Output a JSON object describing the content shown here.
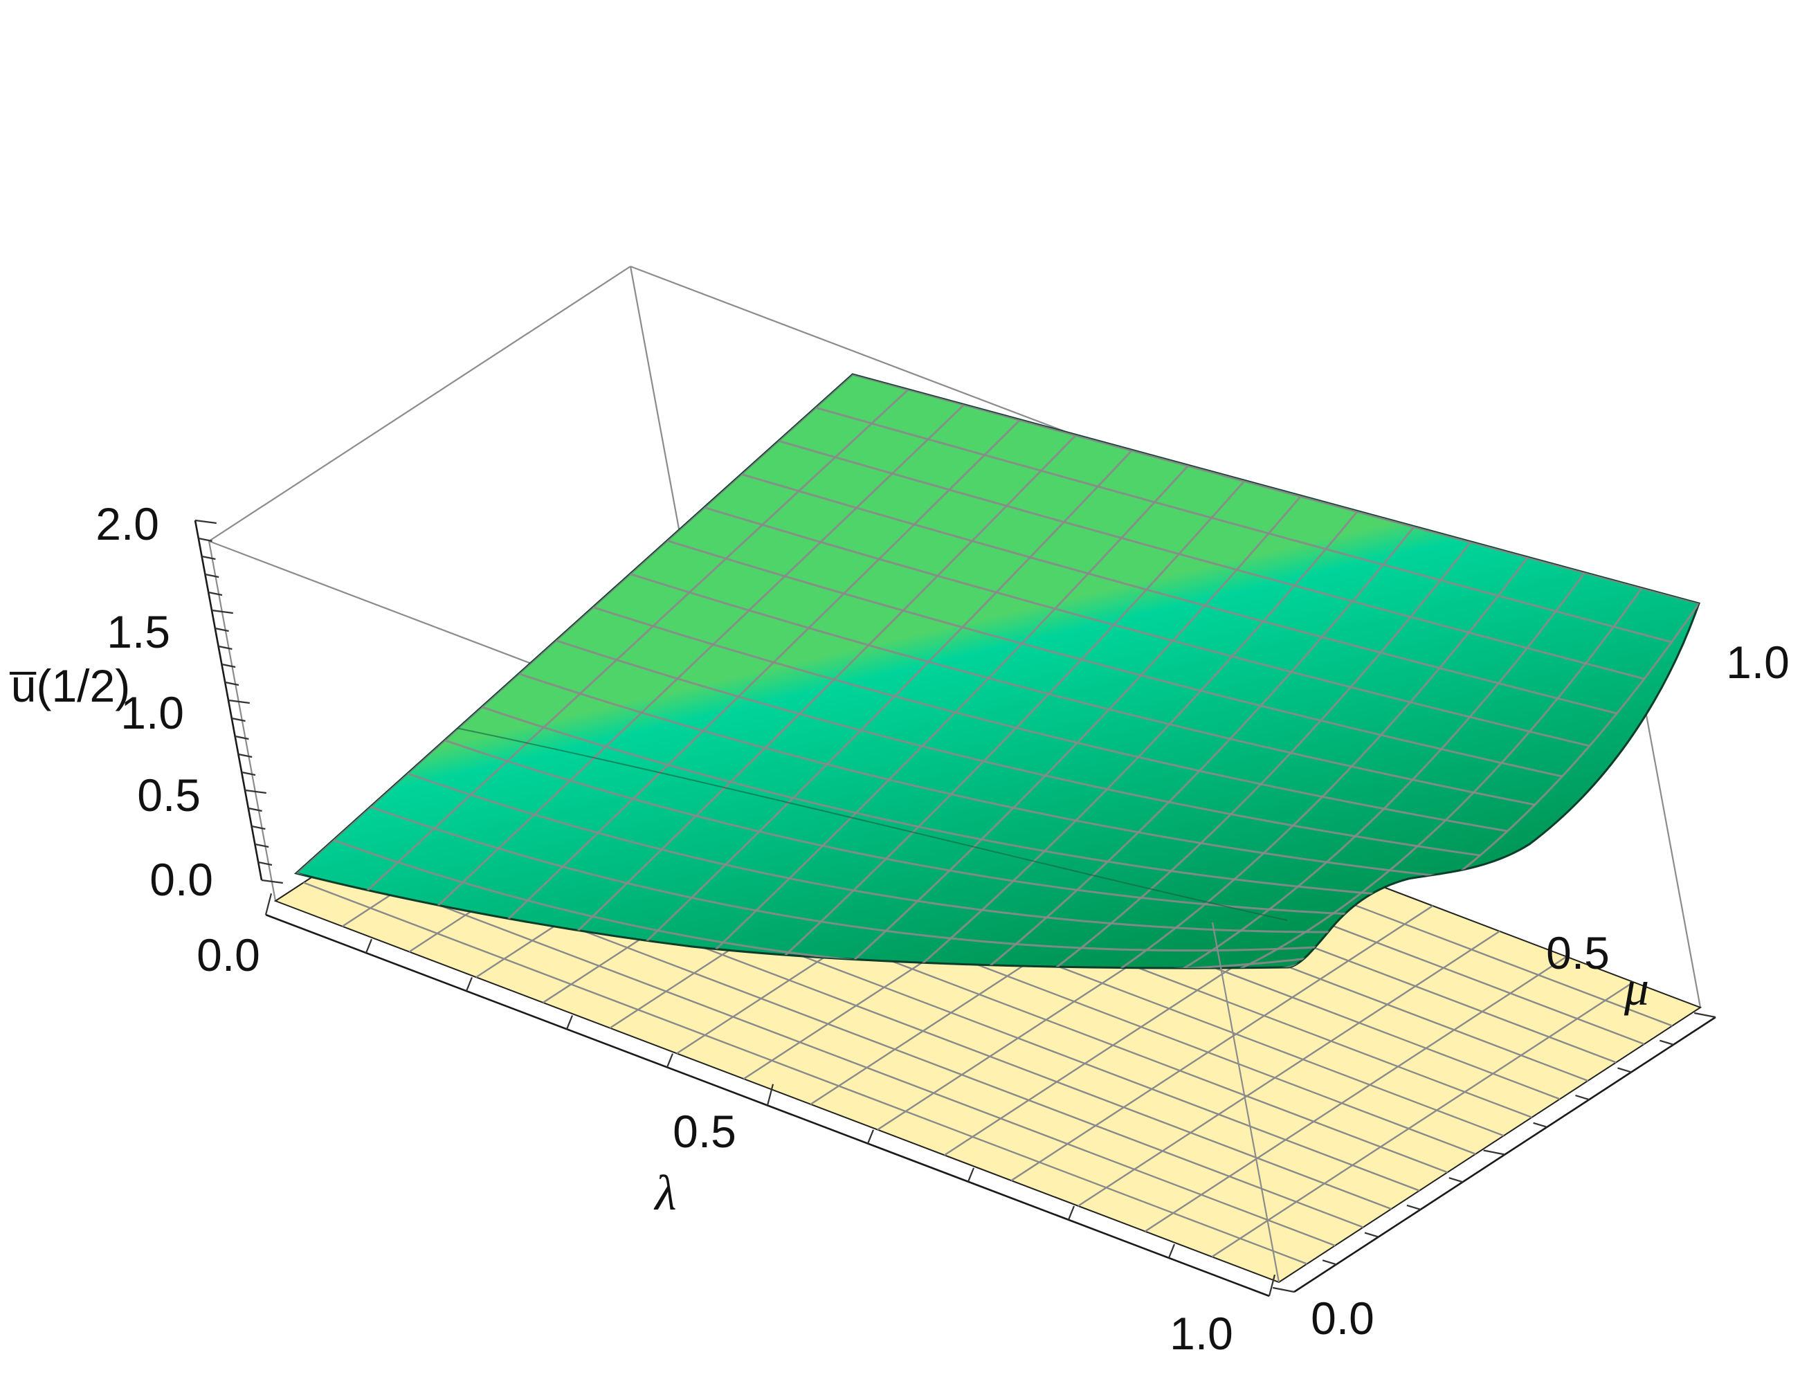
{
  "chart_data": {
    "type": "surface3d",
    "zlabel": "u̅(1/2)",
    "xlabel": "λ",
    "ylabel": "μ",
    "x_ticks": [
      "0.0",
      "0.5",
      "1.0"
    ],
    "y_ticks": [
      "0.0",
      "0.5",
      "1.0"
    ],
    "z_ticks": [
      "0.0",
      "0.5",
      "1.0",
      "1.5",
      "2.0"
    ],
    "xlim": [
      0,
      1
    ],
    "ylim": [
      0,
      1
    ],
    "zlim": [
      0,
      2
    ],
    "box": true,
    "mesh_divisions": 15,
    "surfaces": [
      {
        "name": "",
        "color": "#fff2b0",
        "mesh_color": "#8a8a8a",
        "x": [
          0,
          0.5,
          1
        ],
        "y": [
          0,
          0.5,
          1
        ],
        "z": [
          [
            0,
            0,
            0
          ],
          [
            0,
            0,
            0
          ],
          [
            0,
            0,
            0
          ]
        ]
      },
      {
        "name": "",
        "colors": [
          "#009150",
          "#00d49a",
          "#4fd46a"
        ],
        "mesh_color": "#8a8a8a",
        "x": [
          0.0,
          0.2,
          0.4,
          0.6,
          0.8,
          1.0
        ],
        "y": [
          0.0,
          0.2,
          0.4,
          0.6,
          0.8,
          1.0
        ],
        "z_samples": [
          {
            "x": 0.0,
            "y": 0.0,
            "z": 0.05
          },
          {
            "x": 0.0,
            "y": 1.0,
            "z": 0.09
          },
          {
            "x": 1.0,
            "y": 1.0,
            "z": 0.07
          },
          {
            "x": 0.5,
            "y": 0.0,
            "z": 0.04
          },
          {
            "x": 1.0,
            "y": 0.3,
            "z": 0.0
          },
          {
            "x": 1.0,
            "y": 0.5,
            "z": 0.01
          }
        ]
      }
    ]
  }
}
